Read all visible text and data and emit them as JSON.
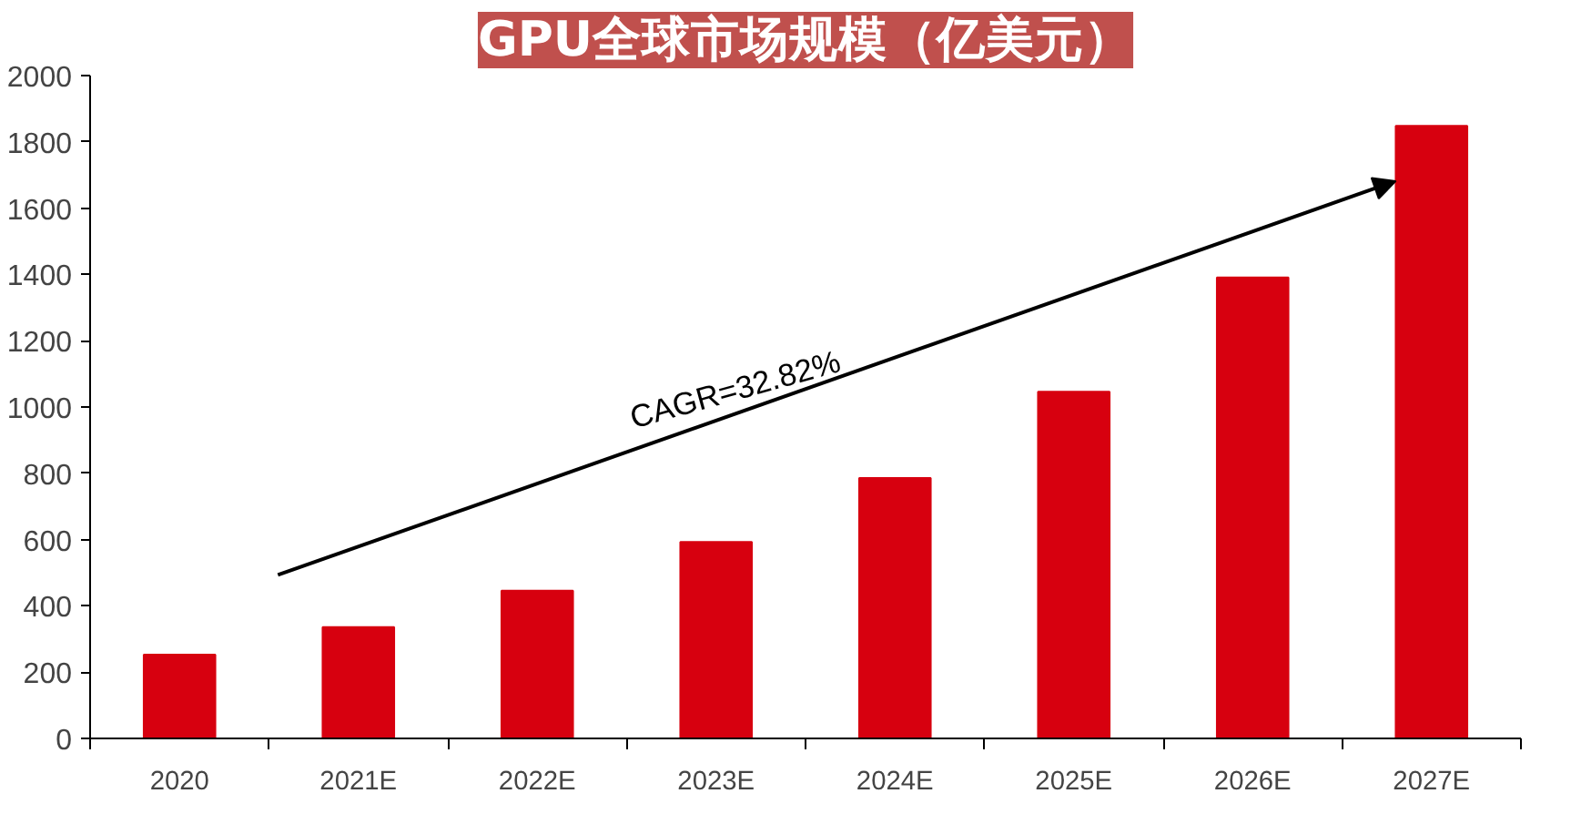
{
  "chart_data": {
    "type": "bar",
    "title": "GPU全球市场规模（亿美元）",
    "categories": [
      "2020",
      "2021E",
      "2022E",
      "2023E",
      "2024E",
      "2025E",
      "2026E",
      "2027E"
    ],
    "values": [
      253,
      336,
      446,
      593,
      786,
      1046,
      1391,
      1848
    ],
    "color": "#d7000f",
    "ylim": [
      0,
      2000
    ],
    "yticks": [
      0,
      200,
      400,
      600,
      800,
      1000,
      1200,
      1400,
      1600,
      1800,
      2000
    ],
    "annotations": [
      "CAGR=32.82%"
    ]
  }
}
